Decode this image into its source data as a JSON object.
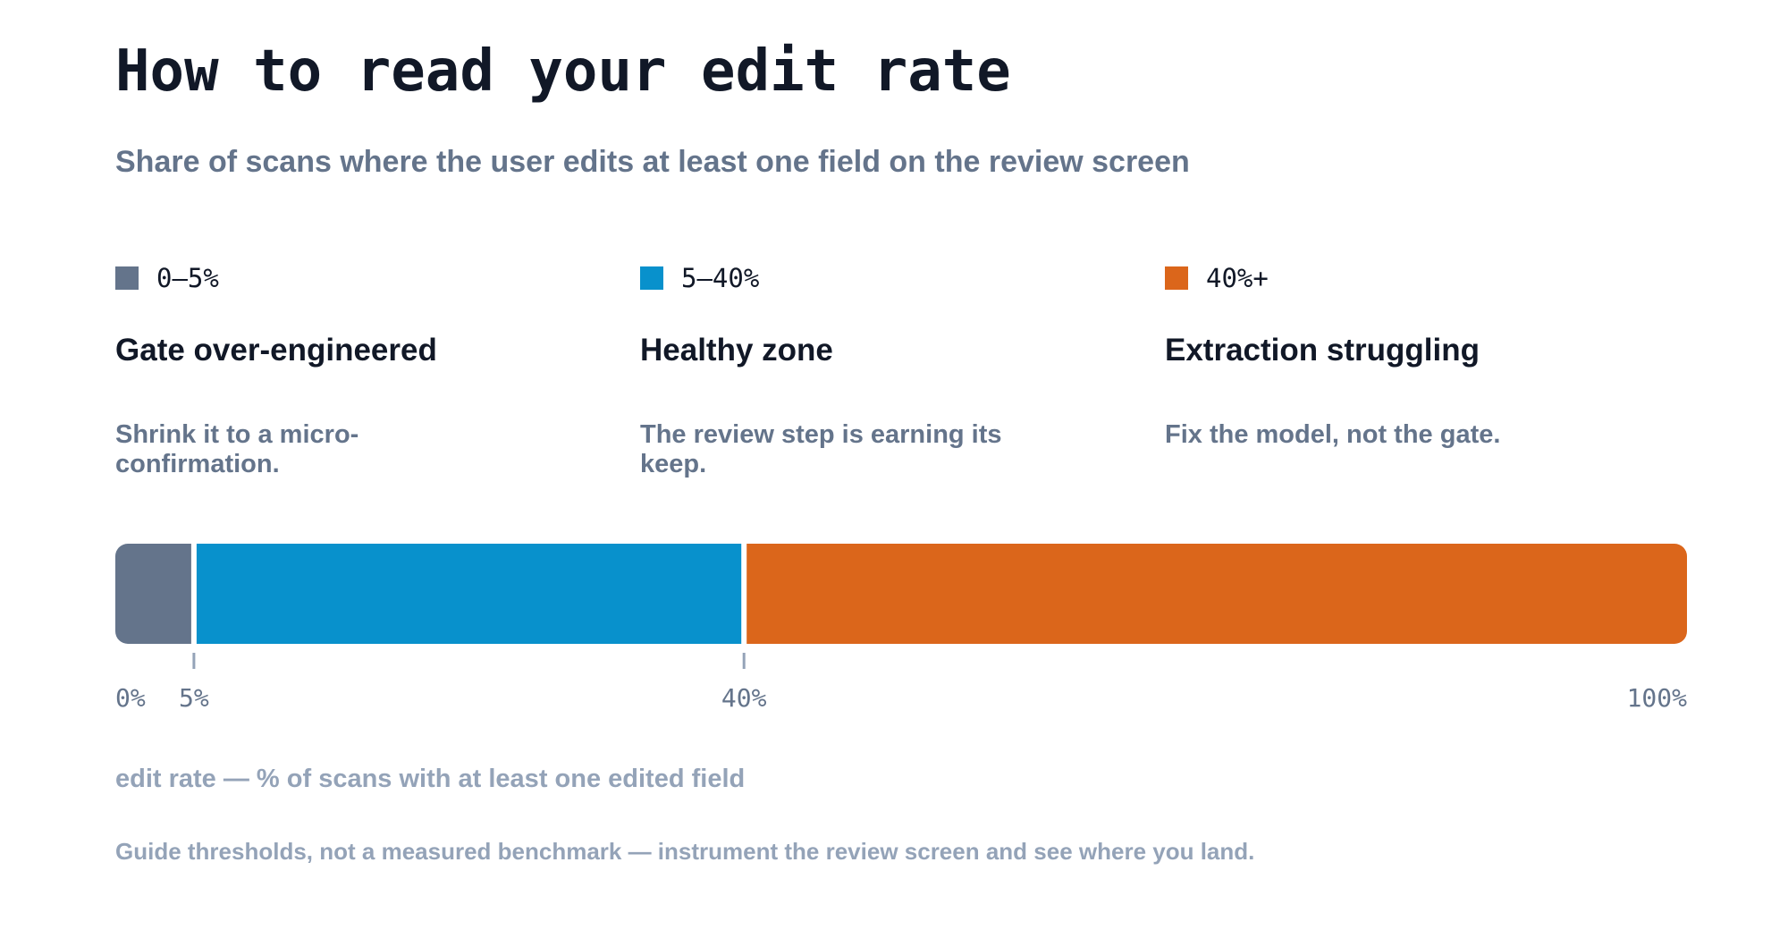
{
  "title": "How to read your edit rate",
  "subtitle": "Share of scans where the user edits at least one field on the review screen",
  "zones": [
    {
      "range": "0–5%",
      "heading": "Gate over-engineered",
      "description": "Shrink it to a micro-confirmation.",
      "color": "#64748b"
    },
    {
      "range": "5–40%",
      "heading": "Healthy zone",
      "description": "The review step is earning its keep.",
      "color": "#0891cc"
    },
    {
      "range": "40%+",
      "heading": "Extraction struggling",
      "description": "Fix the model, not the gate.",
      "color": "#db661b"
    }
  ],
  "axis_caption": "edit rate — % of scans with at least one edited field",
  "footnote": "Guide thresholds, not a measured benchmark — instrument the review screen and see where you land.",
  "chart_data": {
    "type": "bar",
    "orientation": "horizontal-stacked",
    "xlim": [
      0,
      100
    ],
    "segments": [
      {
        "from": 0,
        "to": 5,
        "color": "#64748b"
      },
      {
        "from": 5,
        "to": 40,
        "color": "#0891cc"
      },
      {
        "from": 40,
        "to": 100,
        "color": "#db661b"
      }
    ],
    "tick_values": [
      0,
      5,
      40,
      100
    ],
    "tick_marks": [
      5,
      40
    ],
    "tick_labels": [
      "0%",
      "5%",
      "40%",
      "100%"
    ],
    "xlabel": "edit rate — % of scans with at least one edited field",
    "grid": false
  }
}
